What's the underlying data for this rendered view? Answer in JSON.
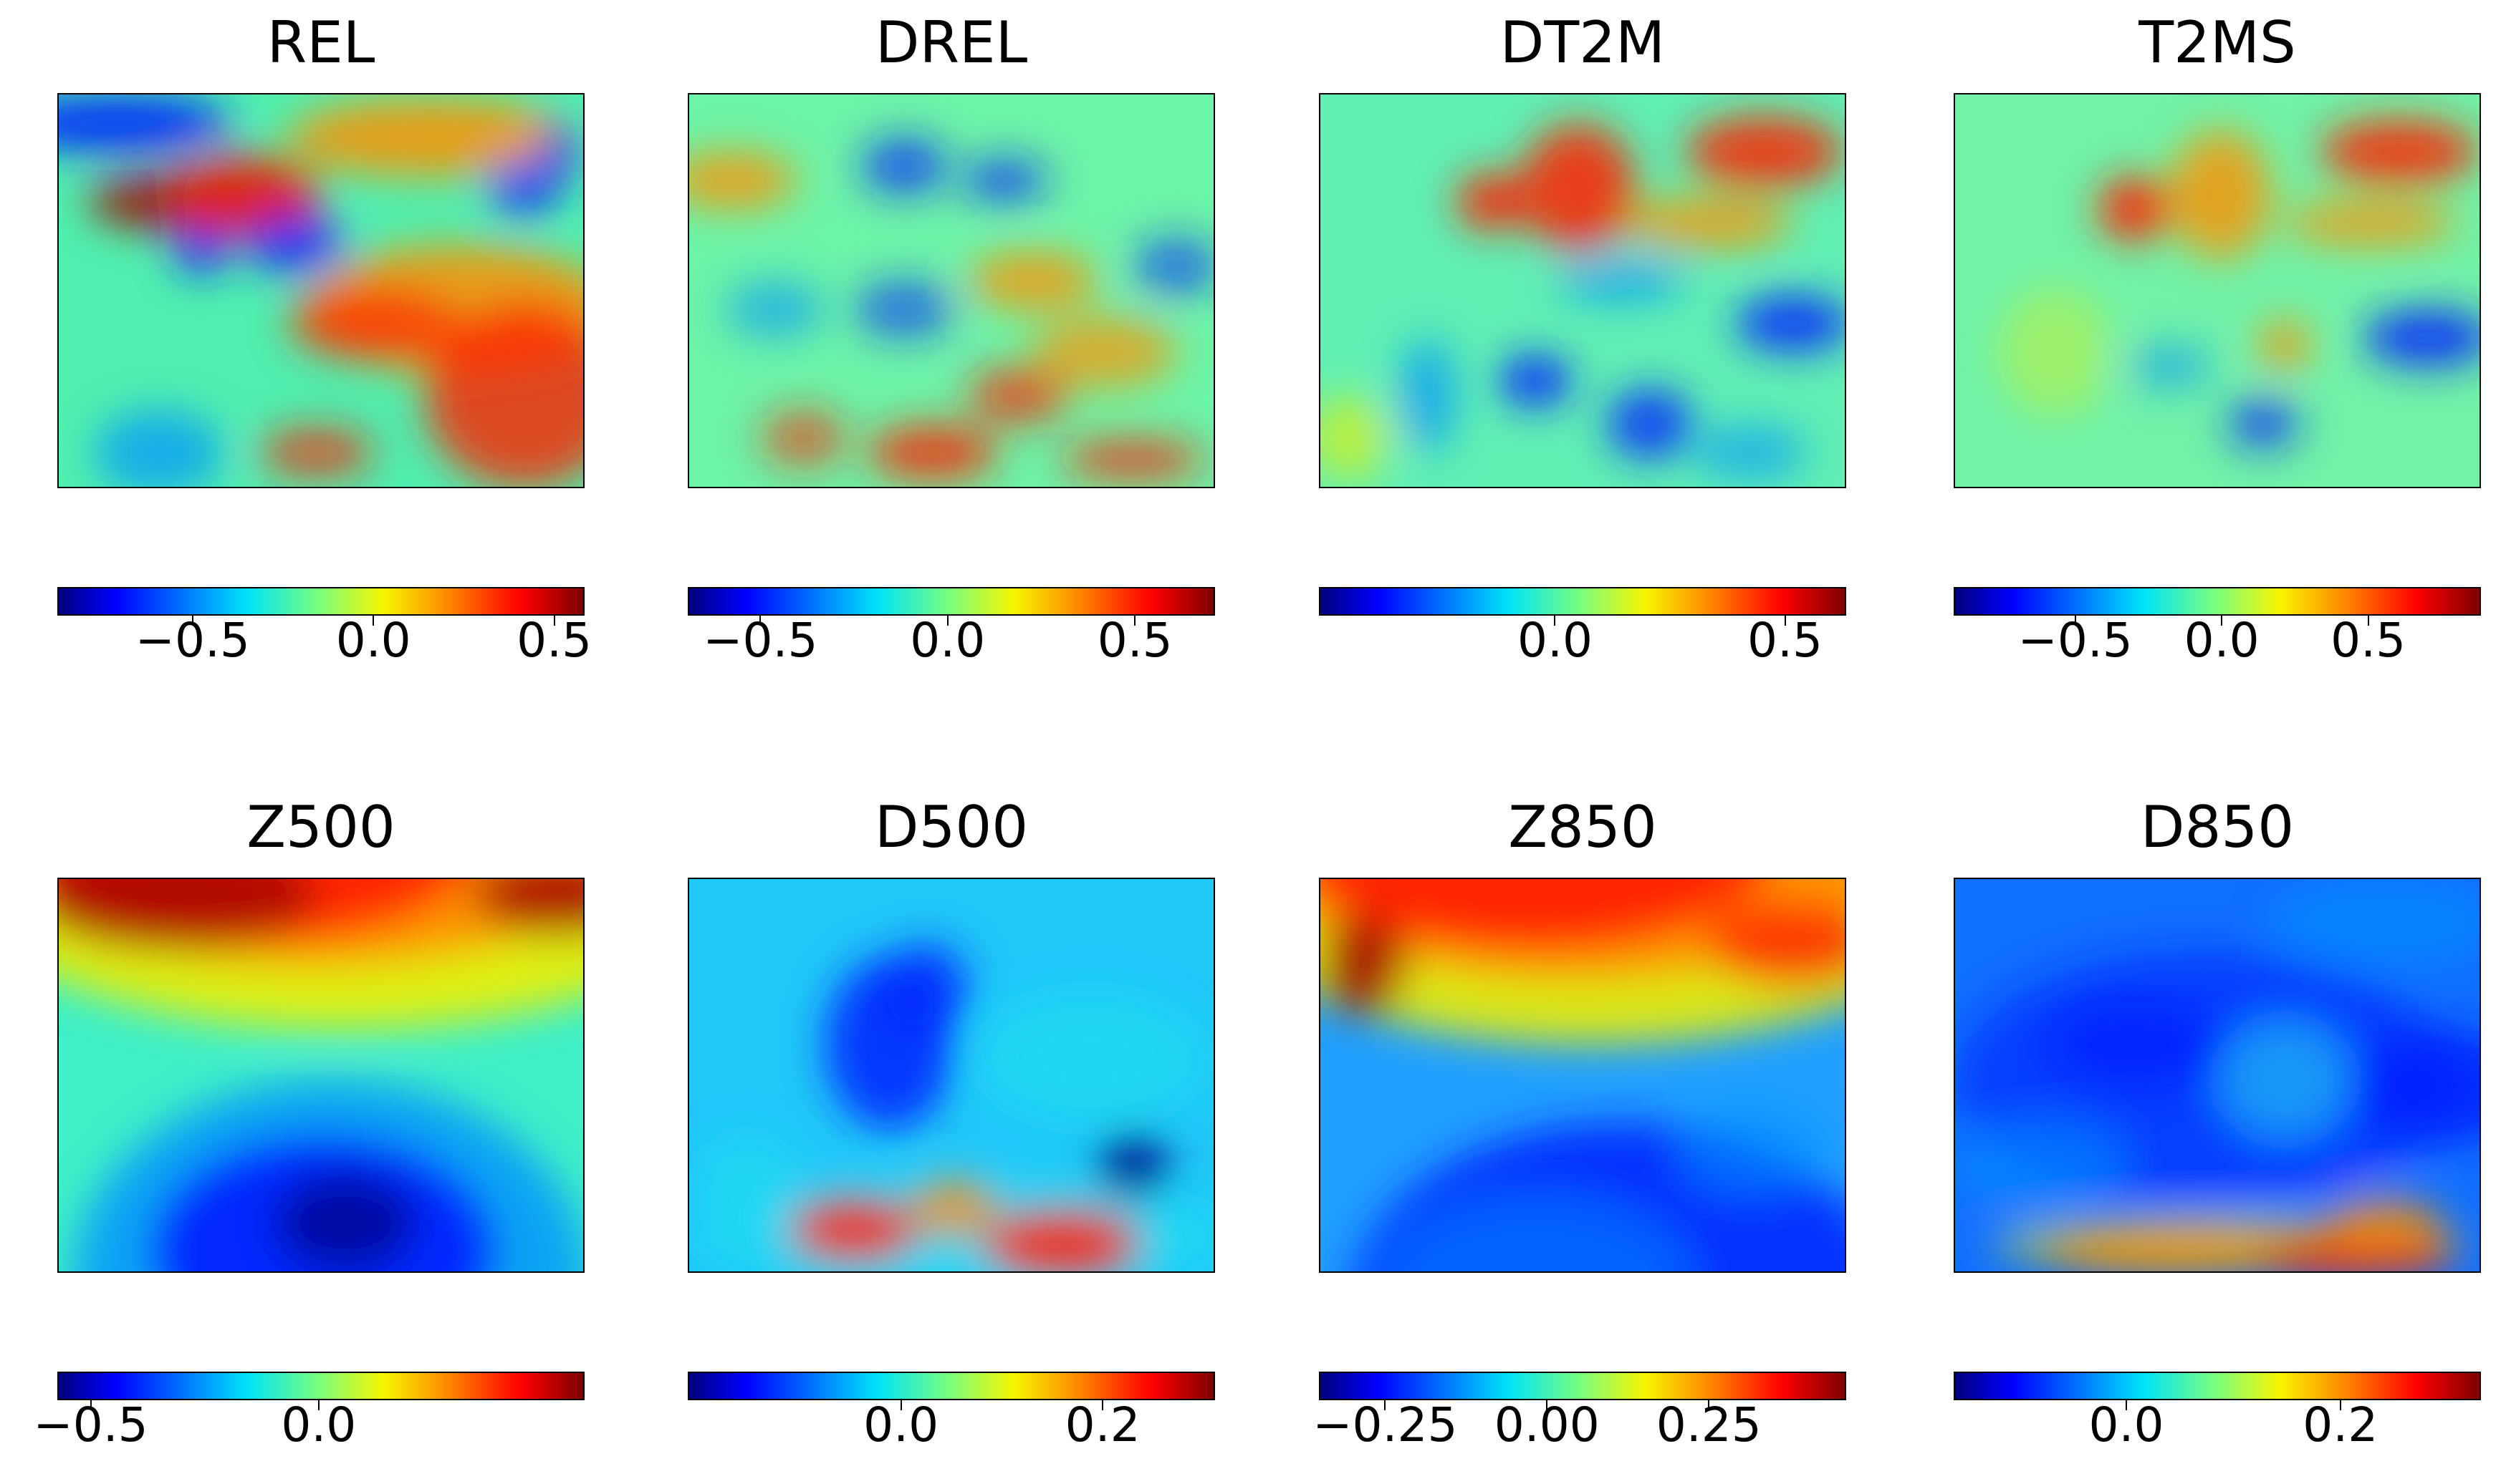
{
  "chart_data": [
    {
      "type": "heatmap",
      "title": "REL",
      "colormap": "jet",
      "colorbar": {
        "range": [
          -0.87,
          0.58
        ],
        "ticks": [
          -0.5,
          0.0,
          0.5
        ],
        "tick_labels": [
          "−0.5",
          "0.0",
          "0.5"
        ]
      }
    },
    {
      "type": "heatmap",
      "title": "DREL",
      "colormap": "jet",
      "colorbar": {
        "range": [
          -0.69,
          0.71
        ],
        "ticks": [
          -0.5,
          0.0,
          0.5
        ],
        "tick_labels": [
          "−0.5",
          "0.0",
          "0.5"
        ]
      }
    },
    {
      "type": "heatmap",
      "title": "DT2M",
      "colormap": "jet",
      "colorbar": {
        "range": [
          -0.51,
          0.63
        ],
        "ticks": [
          0.0,
          0.5
        ],
        "tick_labels": [
          "0.0",
          "0.5"
        ]
      }
    },
    {
      "type": "heatmap",
      "title": "T2MS",
      "colormap": "jet",
      "colorbar": {
        "range": [
          -0.91,
          0.88
        ],
        "ticks": [
          -0.5,
          0.0,
          0.5
        ],
        "tick_labels": [
          "−0.5",
          "0.0",
          "0.5"
        ]
      }
    },
    {
      "type": "heatmap",
      "title": "Z500",
      "colormap": "jet",
      "colorbar": {
        "range": [
          -0.57,
          0.58
        ],
        "ticks": [
          -0.5,
          0.0
        ],
        "tick_labels": [
          "−0.5",
          "0.0"
        ]
      }
    },
    {
      "type": "heatmap",
      "title": "D500",
      "colormap": "jet",
      "colorbar": {
        "range": [
          -0.21,
          0.31
        ],
        "ticks": [
          0.0,
          0.2
        ],
        "tick_labels": [
          "0.0",
          "0.2"
        ]
      }
    },
    {
      "type": "heatmap",
      "title": "Z850",
      "colormap": "jet",
      "colorbar": {
        "range": [
          -0.35,
          0.46
        ],
        "ticks": [
          -0.25,
          0.0,
          0.25
        ],
        "tick_labels": [
          "−0.25",
          "0.00",
          "0.25"
        ]
      }
    },
    {
      "type": "heatmap",
      "title": "D850",
      "colormap": "jet",
      "colorbar": {
        "range": [
          -0.16,
          0.33
        ],
        "ticks": [
          0.0,
          0.2
        ],
        "tick_labels": [
          "0.0",
          "0.2"
        ]
      }
    }
  ]
}
